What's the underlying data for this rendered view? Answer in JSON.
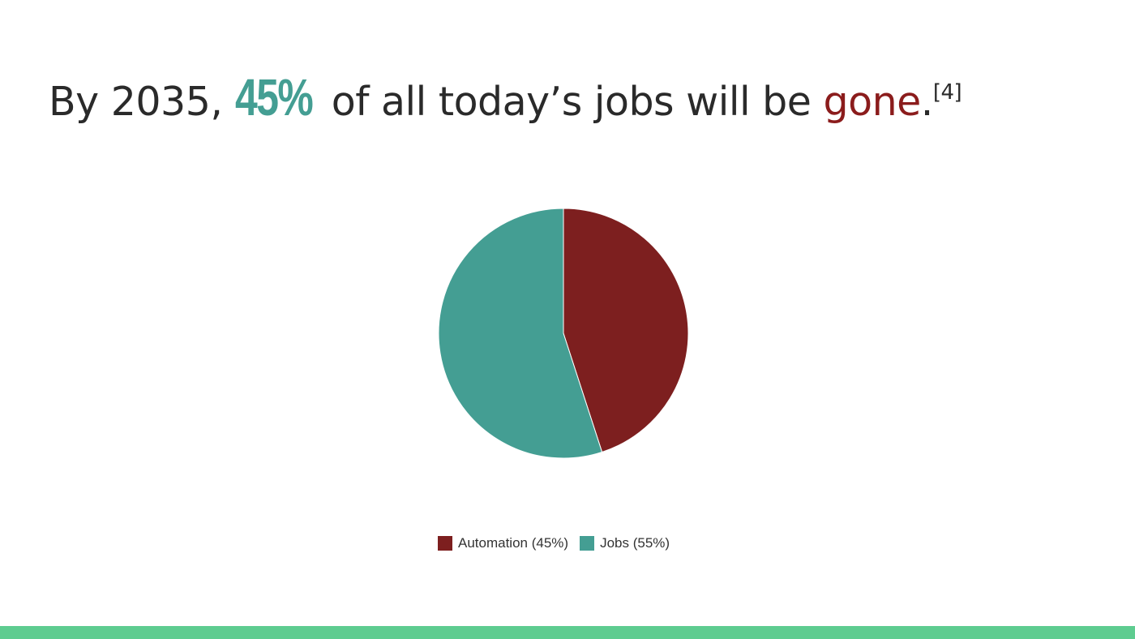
{
  "headline": {
    "prefix": "By 2035, ",
    "stat": "45%",
    "middle": " of all today’s jobs will be ",
    "keyword": "gone",
    "period": ".",
    "citation": "[4]"
  },
  "colors": {
    "automation": "#7d1f1f",
    "jobs": "#449e93",
    "stat_text": "#449e93",
    "keyword_text": "#8b1c1c",
    "bottom_bar": "#5ecc90"
  },
  "chart_data": {
    "type": "pie",
    "title": "",
    "slices": [
      {
        "label": "Automation (45%)",
        "value": 45
      },
      {
        "label": "Jobs (55%)",
        "value": 55
      }
    ],
    "legend_placement": "bottom"
  }
}
